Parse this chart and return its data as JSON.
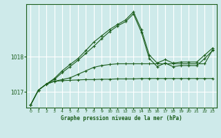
{
  "background_color": "#ceeaea",
  "grid_color": "#ffffff",
  "line_color": "#1a5c1a",
  "title": "Graphe pression niveau de la mer (hPa)",
  "xlim": [
    -0.5,
    23.5
  ],
  "ylim": [
    1016.55,
    1019.5
  ],
  "yticks": [
    1017,
    1018
  ],
  "xticks": [
    0,
    1,
    2,
    3,
    4,
    5,
    6,
    7,
    8,
    9,
    10,
    11,
    12,
    13,
    14,
    15,
    16,
    17,
    18,
    19,
    20,
    21,
    22,
    23
  ],
  "series_flat": [
    1016.62,
    1017.05,
    1017.22,
    1017.3,
    1017.32,
    1017.33,
    1017.34,
    1017.35,
    1017.35,
    1017.36,
    1017.36,
    1017.37,
    1017.37,
    1017.37,
    1017.38,
    1017.38,
    1017.38,
    1017.38,
    1017.38,
    1017.38,
    1017.38,
    1017.38,
    1017.38,
    1017.38
  ],
  "series_mid": [
    1016.62,
    1017.05,
    1017.22,
    1017.3,
    1017.35,
    1017.4,
    1017.5,
    1017.6,
    1017.7,
    1017.75,
    1017.78,
    1017.8,
    1017.8,
    1017.8,
    1017.8,
    1017.8,
    1017.8,
    1017.8,
    1017.8,
    1017.8,
    1017.8,
    1017.8,
    1017.8,
    1018.2
  ],
  "series_peak": [
    1016.62,
    1017.05,
    1017.22,
    1017.35,
    1017.55,
    1017.72,
    1017.9,
    1018.1,
    1018.3,
    1018.52,
    1018.72,
    1018.88,
    1019.0,
    1019.22,
    1018.7,
    1017.95,
    1017.72,
    1017.82,
    1017.72,
    1017.75,
    1017.75,
    1017.75,
    1017.95,
    1018.18
  ],
  "series_high": [
    1016.62,
    1017.05,
    1017.22,
    1017.38,
    1017.6,
    1017.78,
    1017.95,
    1018.18,
    1018.42,
    1018.6,
    1018.78,
    1018.92,
    1019.05,
    1019.28,
    1018.78,
    1018.05,
    1017.82,
    1017.92,
    1017.82,
    1017.85,
    1017.85,
    1017.85,
    1018.05,
    1018.25
  ]
}
